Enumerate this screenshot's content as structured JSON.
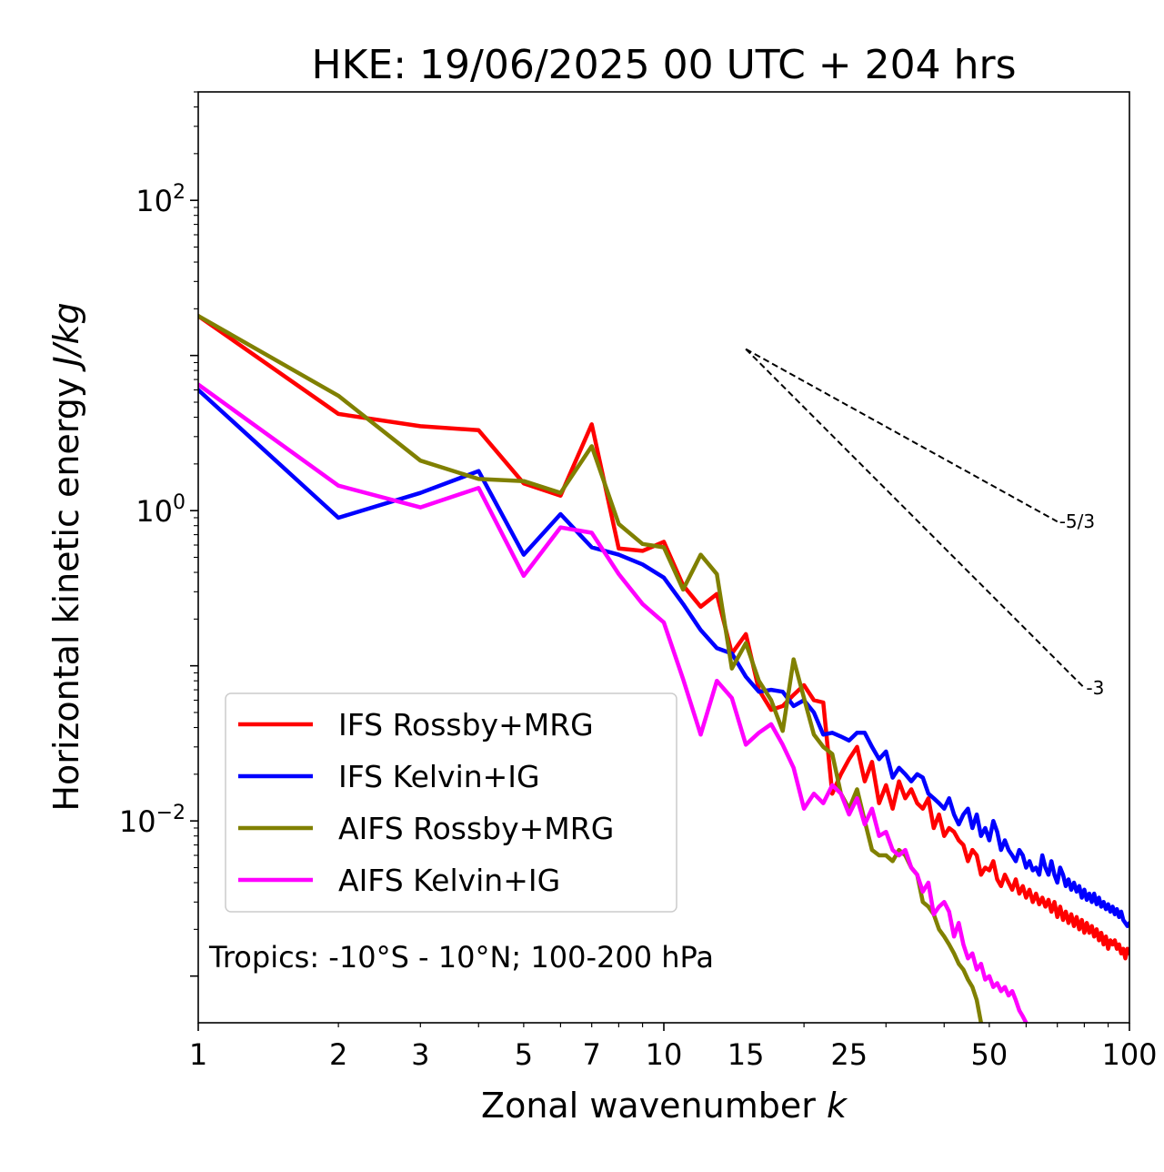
{
  "chart_data": {
    "type": "line",
    "title": "HKE: 19/06/2025 00 UTC + 204 hrs",
    "xlabel_main": "Zonal wavenumber ",
    "xlabel_var": "k",
    "ylabel_main": "Horizontal kinetic energy ",
    "ylabel_unit": "J/kg",
    "xscale": "log",
    "yscale": "log",
    "xlim": [
      1,
      100
    ],
    "ylim": [
      0.0005,
      500
    ],
    "xticks": [
      1,
      2,
      3,
      5,
      7,
      10,
      15,
      25,
      50,
      100
    ],
    "xtick_labels": [
      "1",
      "2",
      "3",
      "5",
      "7",
      "10",
      "15",
      "25",
      "50",
      "100"
    ],
    "yticks": [
      {
        "value": 100,
        "base": "10",
        "exp": "2"
      },
      {
        "value": 1,
        "base": "10",
        "exp": "0"
      },
      {
        "value": 0.01,
        "base": "10",
        "exp": "−2"
      }
    ],
    "annotation": "Tropics: -10°S - 10°N; 100-200 hPa",
    "legend_position": "lower-left",
    "reference_slopes": [
      {
        "label": "-5/3",
        "x": [
          15,
          70
        ],
        "y": [
          11.0,
          0.85
        ]
      },
      {
        "label": "-3",
        "x": [
          15,
          80
        ],
        "y": [
          11.0,
          0.072
        ]
      }
    ],
    "series": [
      {
        "name": "IFS Rossby+MRG",
        "color": "#ff0000",
        "x": [
          1,
          2,
          3,
          4,
          5,
          6,
          7,
          8,
          9,
          10,
          11,
          12,
          13,
          14,
          15,
          16,
          17,
          18,
          19,
          20,
          21,
          22,
          23,
          24,
          25,
          26,
          27,
          28,
          29,
          30,
          31,
          32,
          33,
          34,
          35,
          36,
          37,
          38,
          39,
          40,
          41,
          42,
          43,
          44,
          45,
          46,
          47,
          48,
          49,
          50,
          51,
          52,
          53,
          54,
          55,
          56,
          57,
          58,
          59,
          60,
          61,
          62,
          63,
          64,
          65,
          66,
          67,
          68,
          69,
          70,
          71,
          72,
          73,
          74,
          75,
          76,
          77,
          78,
          79,
          80,
          81,
          82,
          83,
          84,
          85,
          86,
          87,
          88,
          89,
          90,
          91,
          92,
          93,
          94,
          95,
          96,
          97,
          98,
          99,
          100
        ],
        "y": [
          18.0,
          4.2,
          3.5,
          3.3,
          1.5,
          1.25,
          3.6,
          0.57,
          0.55,
          0.63,
          0.33,
          0.24,
          0.29,
          0.12,
          0.16,
          0.07,
          0.052,
          0.055,
          0.065,
          0.075,
          0.06,
          0.058,
          0.015,
          0.02,
          0.025,
          0.03,
          0.018,
          0.024,
          0.013,
          0.017,
          0.012,
          0.018,
          0.014,
          0.016,
          0.013,
          0.012,
          0.014,
          0.009,
          0.011,
          0.008,
          0.009,
          0.0085,
          0.0075,
          0.007,
          0.0055,
          0.0065,
          0.006,
          0.0045,
          0.005,
          0.0048,
          0.0055,
          0.0042,
          0.0038,
          0.0045,
          0.004,
          0.0036,
          0.0042,
          0.0034,
          0.0038,
          0.0032,
          0.0036,
          0.003,
          0.0034,
          0.0029,
          0.0032,
          0.0028,
          0.0031,
          0.0026,
          0.003,
          0.0024,
          0.0028,
          0.0023,
          0.0026,
          0.0022,
          0.0025,
          0.0021,
          0.0024,
          0.002,
          0.0023,
          0.0019,
          0.0022,
          0.0019,
          0.0021,
          0.0018,
          0.002,
          0.0017,
          0.0019,
          0.0016,
          0.0018,
          0.0015,
          0.0017,
          0.0016,
          0.0017,
          0.0015,
          0.0016,
          0.0014,
          0.0015,
          0.0013,
          0.0015,
          0.0014
        ]
      },
      {
        "name": "IFS Kelvin+IG",
        "color": "#0000ff",
        "x": [
          1,
          2,
          3,
          4,
          5,
          6,
          7,
          8,
          9,
          10,
          11,
          12,
          13,
          14,
          15,
          16,
          17,
          18,
          19,
          20,
          21,
          22,
          23,
          24,
          25,
          26,
          27,
          28,
          29,
          30,
          31,
          32,
          33,
          34,
          35,
          36,
          37,
          38,
          39,
          40,
          41,
          42,
          43,
          44,
          45,
          46,
          47,
          48,
          49,
          50,
          51,
          52,
          53,
          54,
          55,
          56,
          57,
          58,
          59,
          60,
          61,
          62,
          63,
          64,
          65,
          66,
          67,
          68,
          69,
          70,
          71,
          72,
          73,
          74,
          75,
          76,
          77,
          78,
          79,
          80,
          81,
          82,
          83,
          84,
          85,
          86,
          87,
          88,
          89,
          90,
          91,
          92,
          93,
          94,
          95,
          96,
          97,
          98,
          99,
          100
        ],
        "y": [
          6.0,
          0.9,
          1.3,
          1.8,
          0.52,
          0.95,
          0.58,
          0.52,
          0.45,
          0.37,
          0.25,
          0.17,
          0.13,
          0.12,
          0.085,
          0.068,
          0.07,
          0.068,
          0.055,
          0.06,
          0.05,
          0.036,
          0.037,
          0.035,
          0.033,
          0.037,
          0.037,
          0.03,
          0.025,
          0.028,
          0.019,
          0.022,
          0.02,
          0.018,
          0.02,
          0.019,
          0.015,
          0.014,
          0.013,
          0.012,
          0.014,
          0.011,
          0.0095,
          0.011,
          0.012,
          0.009,
          0.011,
          0.008,
          0.009,
          0.0075,
          0.01,
          0.0085,
          0.0065,
          0.0075,
          0.0065,
          0.006,
          0.0055,
          0.0065,
          0.006,
          0.005,
          0.0055,
          0.0048,
          0.005,
          0.0045,
          0.006,
          0.005,
          0.0045,
          0.0055,
          0.0045,
          0.004,
          0.005,
          0.0045,
          0.0038,
          0.0042,
          0.0036,
          0.004,
          0.0035,
          0.0038,
          0.0032,
          0.0036,
          0.0031,
          0.0034,
          0.003,
          0.0034,
          0.0029,
          0.0032,
          0.0028,
          0.003,
          0.0027,
          0.0029,
          0.0026,
          0.0028,
          0.0025,
          0.0027,
          0.0024,
          0.0026,
          0.0023,
          0.0022,
          0.0021,
          0.0022
        ]
      },
      {
        "name": "AIFS Rossby+MRG",
        "color": "#808000",
        "x": [
          1,
          2,
          3,
          4,
          5,
          6,
          7,
          8,
          9,
          10,
          11,
          12,
          13,
          14,
          15,
          16,
          17,
          18,
          19,
          20,
          21,
          22,
          23,
          24,
          25,
          26,
          27,
          28,
          29,
          30,
          31,
          32,
          33,
          34,
          35,
          36,
          37,
          38,
          39,
          40,
          41,
          42,
          43,
          44,
          45,
          46,
          47,
          48
        ],
        "y": [
          18.0,
          5.5,
          2.1,
          1.6,
          1.55,
          1.3,
          2.6,
          0.82,
          0.61,
          0.58,
          0.31,
          0.52,
          0.39,
          0.096,
          0.14,
          0.08,
          0.06,
          0.038,
          0.11,
          0.062,
          0.036,
          0.03,
          0.027,
          0.015,
          0.012,
          0.016,
          0.01,
          0.0065,
          0.006,
          0.006,
          0.0055,
          0.0065,
          0.006,
          0.005,
          0.0045,
          0.003,
          0.0028,
          0.0025,
          0.002,
          0.0018,
          0.0016,
          0.0014,
          0.0012,
          0.0011,
          0.00095,
          0.00085,
          0.0007,
          0.0005
        ]
      },
      {
        "name": "AIFS Kelvin+IG",
        "color": "#ff00ff",
        "x": [
          1,
          2,
          3,
          4,
          5,
          6,
          7,
          8,
          9,
          10,
          11,
          12,
          13,
          14,
          15,
          16,
          17,
          18,
          19,
          20,
          21,
          22,
          23,
          24,
          25,
          26,
          27,
          28,
          29,
          30,
          31,
          32,
          33,
          34,
          35,
          36,
          37,
          38,
          39,
          40,
          41,
          42,
          43,
          44,
          45,
          46,
          47,
          48,
          49,
          50,
          51,
          52,
          53,
          54,
          55,
          56,
          57,
          58,
          59,
          60
        ],
        "y": [
          6.5,
          1.45,
          1.05,
          1.4,
          0.38,
          0.78,
          0.72,
          0.39,
          0.25,
          0.19,
          0.082,
          0.036,
          0.08,
          0.062,
          0.031,
          0.037,
          0.042,
          0.031,
          0.022,
          0.012,
          0.015,
          0.013,
          0.017,
          0.015,
          0.011,
          0.014,
          0.0095,
          0.012,
          0.008,
          0.0085,
          0.0065,
          0.006,
          0.0065,
          0.005,
          0.0045,
          0.0035,
          0.004,
          0.0025,
          0.0028,
          0.003,
          0.0026,
          0.0018,
          0.0022,
          0.0016,
          0.0013,
          0.0014,
          0.0011,
          0.0012,
          0.00095,
          0.001,
          0.00085,
          0.0009,
          0.0008,
          0.00085,
          0.00075,
          0.0008,
          0.0007,
          0.0006,
          0.00055,
          0.0005
        ]
      }
    ]
  }
}
